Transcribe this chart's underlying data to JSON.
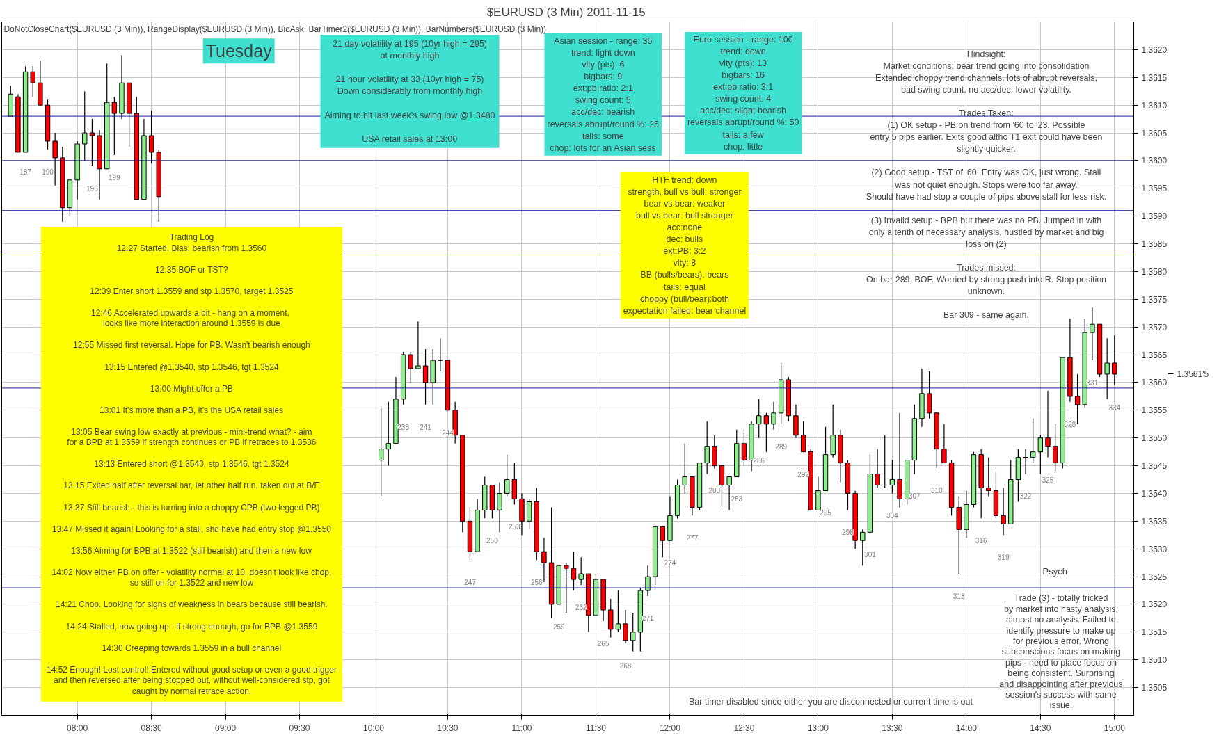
{
  "chart_data": {
    "type": "candlestick",
    "title": "$EURUSD (3 Min)  2011-11-15",
    "subtitle": "DoNotCloseChart($EURUSD  (3 Min)),  RangeDisplay($EURUSD  (3 Min)),  BidAsk,  BarTimer2($EURUSD  (3 Min)),  BarNumbers($EURUSD  (3 Min))",
    "xlim": [
      7.49,
      15.13
    ],
    "ylim": [
      1.35,
      1.3625
    ],
    "xticks": [
      {
        "value": 8,
        "label": "08:00"
      },
      {
        "value": 8.5,
        "label": "08:30"
      },
      {
        "value": 9,
        "label": "09:00"
      },
      {
        "value": 9.5,
        "label": "09:30"
      },
      {
        "value": 10,
        "label": "10:00"
      },
      {
        "value": 10.5,
        "label": "10:30"
      },
      {
        "value": 11,
        "label": "11:00"
      },
      {
        "value": 11.5,
        "label": "11:30"
      },
      {
        "value": 12,
        "label": "12:00"
      },
      {
        "value": 12.5,
        "label": "12:30"
      },
      {
        "value": 13,
        "label": "13:00"
      },
      {
        "value": 13.5,
        "label": "13:30"
      },
      {
        "value": 14,
        "label": "14:00"
      },
      {
        "value": 14.5,
        "label": "14:30"
      },
      {
        "value": 15,
        "label": "15:00"
      }
    ],
    "yticks": [
      {
        "value": 1.3505,
        "label": "1.3505"
      },
      {
        "value": 1.351,
        "label": "1.3510"
      },
      {
        "value": 1.3515,
        "label": "1.3515"
      },
      {
        "value": 1.352,
        "label": "1.3520"
      },
      {
        "value": 1.3525,
        "label": "1.3525"
      },
      {
        "value": 1.353,
        "label": "1.3530"
      },
      {
        "value": 1.3535,
        "label": "1.3535"
      },
      {
        "value": 1.354,
        "label": "1.3540"
      },
      {
        "value": 1.3545,
        "label": "1.3545"
      },
      {
        "value": 1.355,
        "label": "1.3550"
      },
      {
        "value": 1.3555,
        "label": "1.3555"
      },
      {
        "value": 1.356,
        "label": "1.3560"
      },
      {
        "value": 1.3565,
        "label": "1.3565"
      },
      {
        "value": 1.357,
        "label": "1.3570"
      },
      {
        "value": 1.3575,
        "label": "1.3575"
      },
      {
        "value": 1.358,
        "label": "1.3580"
      },
      {
        "value": 1.3585,
        "label": "1.3585"
      },
      {
        "value": 1.359,
        "label": "1.3590"
      },
      {
        "value": 1.3595,
        "label": "1.3595"
      },
      {
        "value": 1.36,
        "label": "1.3600"
      },
      {
        "value": 1.3605,
        "label": "1.3605"
      },
      {
        "value": 1.361,
        "label": "1.3610"
      },
      {
        "value": 1.3615,
        "label": "1.3615"
      },
      {
        "value": 1.362,
        "label": "1.3620"
      }
    ],
    "grid": true,
    "ref_lines": [
      {
        "axis": "y",
        "value": 1.3608,
        "color": "#1c1c9c"
      },
      {
        "axis": "y",
        "value": 1.36,
        "color": "#1c1c9c"
      },
      {
        "axis": "y",
        "value": 1.3591,
        "color": "#1c1c9c"
      },
      {
        "axis": "y",
        "value": 1.3583,
        "color": "#1c1c9c"
      },
      {
        "axis": "y",
        "value": 1.3559,
        "color": "#1c1c9c"
      },
      {
        "axis": "y",
        "value": 1.3523,
        "color": "#1c1c9c"
      }
    ],
    "x": [
      7.55,
      7.6,
      7.65,
      7.7,
      7.75,
      7.8,
      7.85,
      7.9,
      7.95,
      8.0,
      8.05,
      8.1,
      8.15,
      8.2,
      8.25,
      8.3,
      8.35,
      8.4,
      8.45,
      8.5,
      8.55,
      10.05,
      10.1,
      10.15,
      10.2,
      10.25,
      10.3,
      10.35,
      10.4,
      10.45,
      10.5,
      10.55,
      10.6,
      10.65,
      10.7,
      10.75,
      10.8,
      10.85,
      10.9,
      10.95,
      11.0,
      11.05,
      11.1,
      11.15,
      11.2,
      11.25,
      11.3,
      11.35,
      11.4,
      11.45,
      11.5,
      11.55,
      11.6,
      11.65,
      11.7,
      11.75,
      11.8,
      11.85,
      11.9,
      11.95,
      12.0,
      12.05,
      12.1,
      12.15,
      12.2,
      12.25,
      12.3,
      12.35,
      12.4,
      12.45,
      12.5,
      12.55,
      12.6,
      12.65,
      12.7,
      12.75,
      12.8,
      12.85,
      12.9,
      12.95,
      13.0,
      13.05,
      13.1,
      13.15,
      13.2,
      13.25,
      13.3,
      13.35,
      13.4,
      13.45,
      13.5,
      13.55,
      13.6,
      13.65,
      13.7,
      13.75,
      13.8,
      13.85,
      13.9,
      13.95,
      14.0,
      14.05,
      14.1,
      14.15,
      14.2,
      14.25,
      14.3,
      14.35,
      14.4,
      14.45,
      14.5,
      14.55,
      14.6,
      14.65,
      14.7,
      14.75,
      14.8,
      14.85,
      14.9,
      14.95,
      15.0
    ],
    "ohlc": [
      [
        1.3608,
        1.36135,
        1.3608,
        1.3612
      ],
      [
        1.36115,
        1.3612,
        1.36015,
        1.36015
      ],
      [
        1.36015,
        1.3617,
        1.36015,
        1.3616
      ],
      [
        1.3616,
        1.3617,
        1.36115,
        1.3614
      ],
      [
        1.3614,
        1.3618,
        1.361,
        1.361
      ],
      [
        1.361,
        1.3611,
        1.3602,
        1.36035
      ],
      [
        1.36035,
        1.3605,
        1.35955,
        1.36005
      ],
      [
        1.36005,
        1.36025,
        1.3589,
        1.35915
      ],
      [
        1.35915,
        1.35965,
        1.359,
        1.35965
      ],
      [
        1.35965,
        1.36035,
        1.3593,
        1.3603
      ],
      [
        1.3603,
        1.36125,
        1.36,
        1.3605
      ],
      [
        1.3605,
        1.36075,
        1.3599,
        1.36045
      ],
      [
        1.36045,
        1.36055,
        1.3593,
        1.35985
      ],
      [
        1.35985,
        1.36175,
        1.35985,
        1.36105
      ],
      [
        1.36105,
        1.36115,
        1.3601,
        1.36085
      ],
      [
        1.36085,
        1.3619,
        1.36075,
        1.3614
      ],
      [
        1.3614,
        1.3614,
        1.36025,
        1.36085
      ],
      [
        1.36085,
        1.36115,
        1.3593,
        1.3593
      ],
      [
        1.3593,
        1.36075,
        1.3593,
        1.36045
      ],
      [
        1.36045,
        1.3609,
        1.35995,
        1.36015
      ],
      [
        1.36015,
        1.3602,
        1.3589,
        1.35935
      ],
      [
        1.3546,
        1.35555,
        1.35395,
        1.3548
      ],
      [
        1.3548,
        1.35565,
        1.3545,
        1.3549
      ],
      [
        1.3549,
        1.3561,
        1.3549,
        1.3557
      ],
      [
        1.3557,
        1.35655,
        1.3556,
        1.3565
      ],
      [
        1.3565,
        1.35655,
        1.356,
        1.35625
      ],
      [
        1.35625,
        1.3571,
        1.35625,
        1.3563
      ],
      [
        1.3563,
        1.3566,
        1.3556,
        1.356
      ],
      [
        1.356,
        1.3566,
        1.3556,
        1.3564
      ],
      [
        1.3564,
        1.3568,
        1.3562,
        1.3564
      ],
      [
        1.3564,
        1.3564,
        1.3555,
        1.3555
      ],
      [
        1.3555,
        1.35565,
        1.3549,
        1.35505
      ],
      [
        1.35505,
        1.35505,
        1.3533,
        1.3535
      ],
      [
        1.3535,
        1.35375,
        1.3528,
        1.35295
      ],
      [
        1.35295,
        1.3539,
        1.35295,
        1.3537
      ],
      [
        1.3537,
        1.3543,
        1.35355,
        1.35415
      ],
      [
        1.35415,
        1.35415,
        1.35355,
        1.3537
      ],
      [
        1.3537,
        1.3542,
        1.3533,
        1.354
      ],
      [
        1.354,
        1.3547,
        1.35395,
        1.35425
      ],
      [
        1.35425,
        1.35455,
        1.3538,
        1.3539
      ],
      [
        1.3539,
        1.354,
        1.35325,
        1.3535
      ],
      [
        1.3535,
        1.3539,
        1.35335,
        1.35385
      ],
      [
        1.35385,
        1.3541,
        1.3528,
        1.35295
      ],
      [
        1.35295,
        1.3532,
        1.3524,
        1.35275
      ],
      [
        1.35275,
        1.35375,
        1.35175,
        1.352
      ],
      [
        1.352,
        1.3527,
        1.352,
        1.3527
      ],
      [
        1.3527,
        1.35275,
        1.35185,
        1.35265
      ],
      [
        1.35265,
        1.35295,
        1.35225,
        1.35245
      ],
      [
        1.35245,
        1.35285,
        1.35235,
        1.35255
      ],
      [
        1.35255,
        1.35255,
        1.3515,
        1.3518
      ],
      [
        1.3518,
        1.35255,
        1.3518,
        1.35245
      ],
      [
        1.35245,
        1.35245,
        1.3517,
        1.3519
      ],
      [
        1.3519,
        1.3521,
        1.3514,
        1.35155
      ],
      [
        1.35155,
        1.35225,
        1.3515,
        1.35165
      ],
      [
        1.35165,
        1.3519,
        1.3513,
        1.35135
      ],
      [
        1.35135,
        1.35185,
        1.35115,
        1.3515
      ],
      [
        1.3515,
        1.3523,
        1.35115,
        1.35225
      ],
      [
        1.35225,
        1.3527,
        1.35215,
        1.3525
      ],
      [
        1.3525,
        1.3534,
        1.35235,
        1.3534
      ],
      [
        1.3534,
        1.3534,
        1.35285,
        1.35315
      ],
      [
        1.35315,
        1.35395,
        1.35315,
        1.3536
      ],
      [
        1.3536,
        1.35425,
        1.35355,
        1.35415
      ],
      [
        1.35415,
        1.3549,
        1.354,
        1.3543
      ],
      [
        1.3543,
        1.3543,
        1.3536,
        1.35375
      ],
      [
        1.35375,
        1.35455,
        1.3537,
        1.35455
      ],
      [
        1.35455,
        1.3553,
        1.35435,
        1.35485
      ],
      [
        1.35485,
        1.35505,
        1.35445,
        1.3545
      ],
      [
        1.3545,
        1.3545,
        1.35375,
        1.35415
      ],
      [
        1.35415,
        1.3543,
        1.3537,
        1.3543
      ],
      [
        1.3543,
        1.35515,
        1.3543,
        1.3549
      ],
      [
        1.3549,
        1.35515,
        1.3545,
        1.3546
      ],
      [
        1.3546,
        1.3553,
        1.3544,
        1.35525
      ],
      [
        1.35525,
        1.3557,
        1.355,
        1.3554
      ],
      [
        1.3554,
        1.35545,
        1.35475,
        1.35525
      ],
      [
        1.35525,
        1.35565,
        1.35515,
        1.35545
      ],
      [
        1.35545,
        1.35635,
        1.35525,
        1.35605
      ],
      [
        1.35605,
        1.3561,
        1.3553,
        1.3554
      ],
      [
        1.3554,
        1.3556,
        1.355,
        1.35505
      ],
      [
        1.35505,
        1.3553,
        1.35475,
        1.35475
      ],
      [
        1.35475,
        1.3548,
        1.3537,
        1.3537
      ],
      [
        1.3537,
        1.3543,
        1.3537,
        1.35405
      ],
      [
        1.35405,
        1.3552,
        1.35405,
        1.3547
      ],
      [
        1.3547,
        1.3556,
        1.35465,
        1.35505
      ],
      [
        1.35505,
        1.35515,
        1.3542,
        1.35455
      ],
      [
        1.35455,
        1.3546,
        1.3537,
        1.354
      ],
      [
        1.354,
        1.35405,
        1.353,
        1.35315
      ],
      [
        1.35315,
        1.35335,
        1.3527,
        1.3533
      ],
      [
        1.3533,
        1.3547,
        1.3533,
        1.35435
      ],
      [
        1.35435,
        1.3548,
        1.3541,
        1.35415
      ],
      [
        1.35415,
        1.35505,
        1.3541,
        1.35415
      ],
      [
        1.35415,
        1.3546,
        1.354,
        1.35425
      ],
      [
        1.35425,
        1.35545,
        1.35375,
        1.3539
      ],
      [
        1.3539,
        1.3546,
        1.3538,
        1.3546
      ],
      [
        1.3546,
        1.3556,
        1.35435,
        1.35535
      ],
      [
        1.35535,
        1.35625,
        1.3552,
        1.3558
      ],
      [
        1.3558,
        1.3562,
        1.35535,
        1.35545
      ],
      [
        1.35545,
        1.35545,
        1.35445,
        1.3548
      ],
      [
        1.3548,
        1.35525,
        1.35455,
        1.35455
      ],
      [
        1.35455,
        1.3546,
        1.3536,
        1.35375
      ],
      [
        1.35375,
        1.35395,
        1.35255,
        1.35335
      ],
      [
        1.35335,
        1.35405,
        1.3532,
        1.3538
      ],
      [
        1.3538,
        1.35475,
        1.35375,
        1.3547
      ],
      [
        1.3547,
        1.3548,
        1.35355,
        1.3541
      ],
      [
        1.3541,
        1.35465,
        1.35395,
        1.35405
      ],
      [
        1.35405,
        1.3544,
        1.35355,
        1.3536
      ],
      [
        1.3536,
        1.3541,
        1.35325,
        1.35345
      ],
      [
        1.35345,
        1.3546,
        1.35345,
        1.35425
      ],
      [
        1.35425,
        1.3548,
        1.35385,
        1.35465
      ],
      [
        1.35465,
        1.3548,
        1.35435,
        1.35465
      ],
      [
        1.35465,
        1.35535,
        1.35455,
        1.35475
      ],
      [
        1.35475,
        1.35505,
        1.35435,
        1.355
      ],
      [
        1.355,
        1.35585,
        1.35465,
        1.35485
      ],
      [
        1.35485,
        1.35525,
        1.3544,
        1.35455
      ],
      [
        1.35455,
        1.35645,
        1.35445,
        1.35645
      ],
      [
        1.35645,
        1.35715,
        1.35565,
        1.35575
      ],
      [
        1.35575,
        1.35615,
        1.35525,
        1.3556
      ],
      [
        1.3556,
        1.35715,
        1.35555,
        1.3569
      ],
      [
        1.3569,
        1.35735,
        1.3564,
        1.35705
      ],
      [
        1.35705,
        1.35705,
        1.3561,
        1.35615
      ],
      [
        1.35615,
        1.3568,
        1.3557,
        1.35635
      ],
      [
        1.35635,
        1.35685,
        1.35595,
        1.35615
      ]
    ],
    "annotations": [
      "Tuesday",
      "21 day volatility at 195 (10yr high = 295)\nat monthly high\n\n21 hour volatility at 33 (10yr high = 75)\nDown considerably from monthly high\n\nAiming to hit last week's swing low @1.3480\n\nUSA retail sales at 13:00",
      "Asian session - range: 35\ntrend: light down\nvlty (pts): 6\nbigbars: 9\next:pb ratio: 2:1\nswing count: 5\nacc/dec: bearish\nreversals abrupt/round %: 25\ntails: some\nchop: lots for an Asian sess",
      "Euro session - range: 100\ntrend: down\nvlty (pts): 13\nbigbars: 16\next:pb ratio: 3:1\nswing count: 4\nacc/dec: slight bearish\nreversals abrupt/round %: 50\ntails: a few\nchop: little",
      "Hindsight:\nMarket conditions: bear trend going into consolidation\nExtended choppy trend channels, lots of abrupt reversals,\nbad swing count, no acc/dec, lower volatility.\n\nTrades Taken:\n(1) OK setup - PB on trend from '60 to '23. Possible\nentry 5 pips earlier. Exits good altho T1 exit could have been\nslightly quicker.\n\n(2) Good setup - TST of '60. Entry was OK, just wrong. Stall\nwas not quiet enough. Stops were too far away.\nShould have had stop a couple of pips above stall for less risk.\n\n(3) Invalid setup - BPB but there was no PB. Jumped in with\nonly a tenth of necessary analysis, hustled by market and big\nloss on (2)\n\nTrades missed:\nOn bar 289, BOF. Worried by strong push into R. Stop position\nunknown.\n\nBar 309 - same again.",
      "HTF trend: down\nstrength, bull vs bull: stronger\nbear vs bear: weaker\nbull vs bear: bull stronger\nacc:none\ndec: bulls\next:PB: 3:2\nvlty: 8\nBB (bulls/bears): bears\ntails: equal\nchoppy (bull/bear):both\nexpectation failed: bear channel",
      "Trading Log\n12:27 Started. Bias: bearish from 1.3560\n\n12:35 BOF or TST?\n\n12:39 Enter short 1.3559 and stp 1.3570, target 1.3525\n\n12:46 Accelerated upwards a bit  - hang on a moment,\nlooks like more interaction around 1.3559 is due\n\n12:55 Missed first reversal. Hope for PB. Wasn't bearish enough\n\n13:15 Entered @1.3540, stp 1.3546, tgt 1.3524\n\n13:00 Might offer a PB\n\n13:01 It's more than a PB, it's the USA retail sales\n\n13:05 Bear swing low exactly at previous - mini-trend what? - aim\nfor a BPB at 1.3559 if strength continues or PB if retraces to 1.3536\n\n13:13 Entered short @1.3540, stp 1.3546, tgt 1.3524\n\n13:15 Exited half after reversal bar, let other half run, taken out at B/E\n\n13:37 Still bearish - this is turning into a choppy CPB (two legged PB)\n\n13:47 Missed it again! Looking for a stall, shd have had entry stop @1.3550\n\n13:56 Aiming for BPB at 1.3522 (still bearish) and then a new low\n\n14:02 Now either PB on offer - volatility normal at 10, doesn't look like chop,\nso still on for 1.3522 and new low\n\n14:21 Chop. Looking for signs of weakness in bears because still bearish.\n\n14:24 Stalled, now going up - if strong enough, go for BPB @1.3559\n\n14:30 Creeping towards 1.3559 in a bull channel\n\n14:52 Enough! Lost control! Entered without good setup or even a good trigger\nand then reversed after being stopped out, without well-considered stp, got\ncaught by normal retrace action.",
      "Psych",
      "Trade (3) - totally tricked\nby market into hasty analysis,\nalmost no analysis. Failed to\nidentify pressure to make up\nfor previous error. Wrong\nsubconscious focus on making\npips - need to place focus on\nbeing consistent. Surprising\nand disappointing after previous\nsession's success with same\nissue.",
      "Bar timer disabled since either you are disconnected or current time is out",
      "1.3561'5",
      "187",
      "190",
      "196",
      "199",
      "238",
      "241",
      "244",
      "247",
      "250",
      "253",
      "256",
      "259",
      "262",
      "265",
      "268",
      "271",
      "274",
      "277",
      "280",
      "283",
      "286",
      "289",
      "292",
      "295",
      "298",
      "301",
      "304",
      "307",
      "310",
      "313",
      "316",
      "319",
      "322",
      "325",
      "328",
      "331",
      "334"
    ]
  }
}
